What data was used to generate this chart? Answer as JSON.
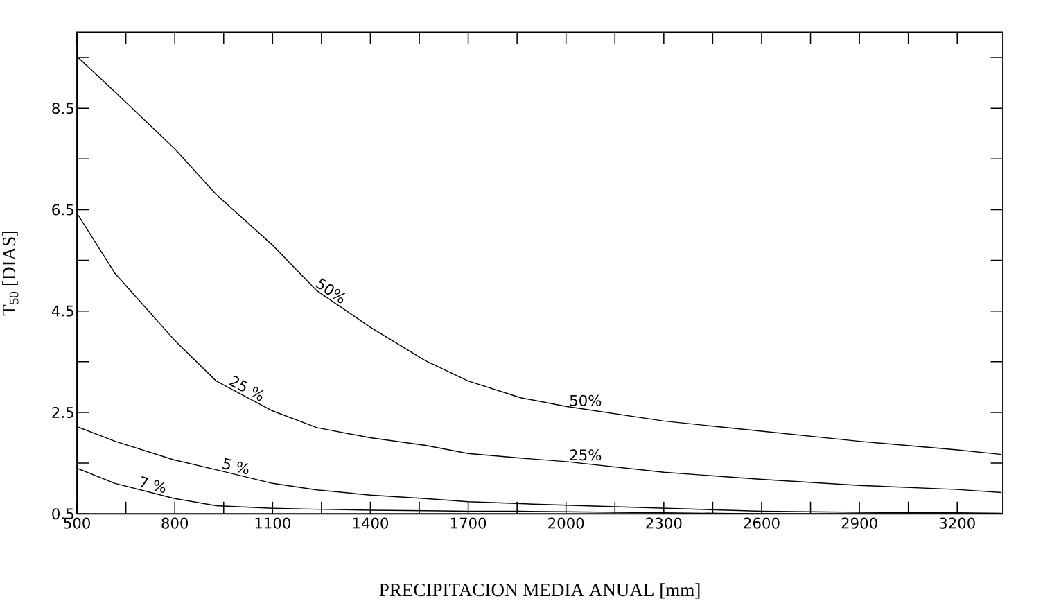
{
  "chart_data": {
    "type": "line",
    "xlabel": "PRECIPITACION MEDIA ANUAL [mm]",
    "ylabel": "T$_{50}$ [DIAS]",
    "xlim": [
      500,
      3340
    ],
    "ylim": [
      0.5,
      10
    ],
    "xticks": [
      500,
      800,
      1100,
      1400,
      1700,
      2000,
      2300,
      2600,
      2900,
      3200
    ],
    "yticks": [
      0.5,
      2.5,
      4.5,
      6.5,
      8.5
    ],
    "marker": "none",
    "line_style": "solid",
    "x": [
      500,
      617,
      800,
      927,
      1100,
      1236,
      1400,
      1569,
      1700,
      1861,
      2000,
      2300,
      2600,
      2900,
      3200,
      3336
    ],
    "series": [
      {
        "name": "50%",
        "color": "#000000",
        "values": [
          9.52,
          8.82,
          7.7,
          6.8,
          5.8,
          4.9,
          4.18,
          3.52,
          3.12,
          2.79,
          2.62,
          2.33,
          2.13,
          1.93,
          1.76,
          1.67
        ]
      },
      {
        "name": "25 %",
        "color": "#000000",
        "values": [
          6.43,
          5.24,
          3.92,
          3.12,
          2.53,
          2.2,
          2.0,
          1.85,
          1.69,
          1.6,
          1.53,
          1.32,
          1.18,
          1.06,
          0.98,
          0.92
        ]
      },
      {
        "name": "5 %",
        "color": "#000000",
        "values": [
          2.22,
          1.93,
          1.56,
          1.37,
          1.1,
          0.97,
          0.87,
          0.8,
          0.74,
          0.7,
          0.67,
          0.61,
          0.55,
          0.53,
          0.52,
          0.51
        ]
      },
      {
        "name": "7 %",
        "color": "#000000",
        "values": [
          1.4,
          1.1,
          0.8,
          0.66,
          0.61,
          0.59,
          0.57,
          0.56,
          0.55,
          0.55,
          0.54,
          0.52,
          0.5,
          0.5,
          0.5,
          0.5
        ]
      }
    ],
    "annotations": [
      "50%",
      "25%"
    ]
  }
}
